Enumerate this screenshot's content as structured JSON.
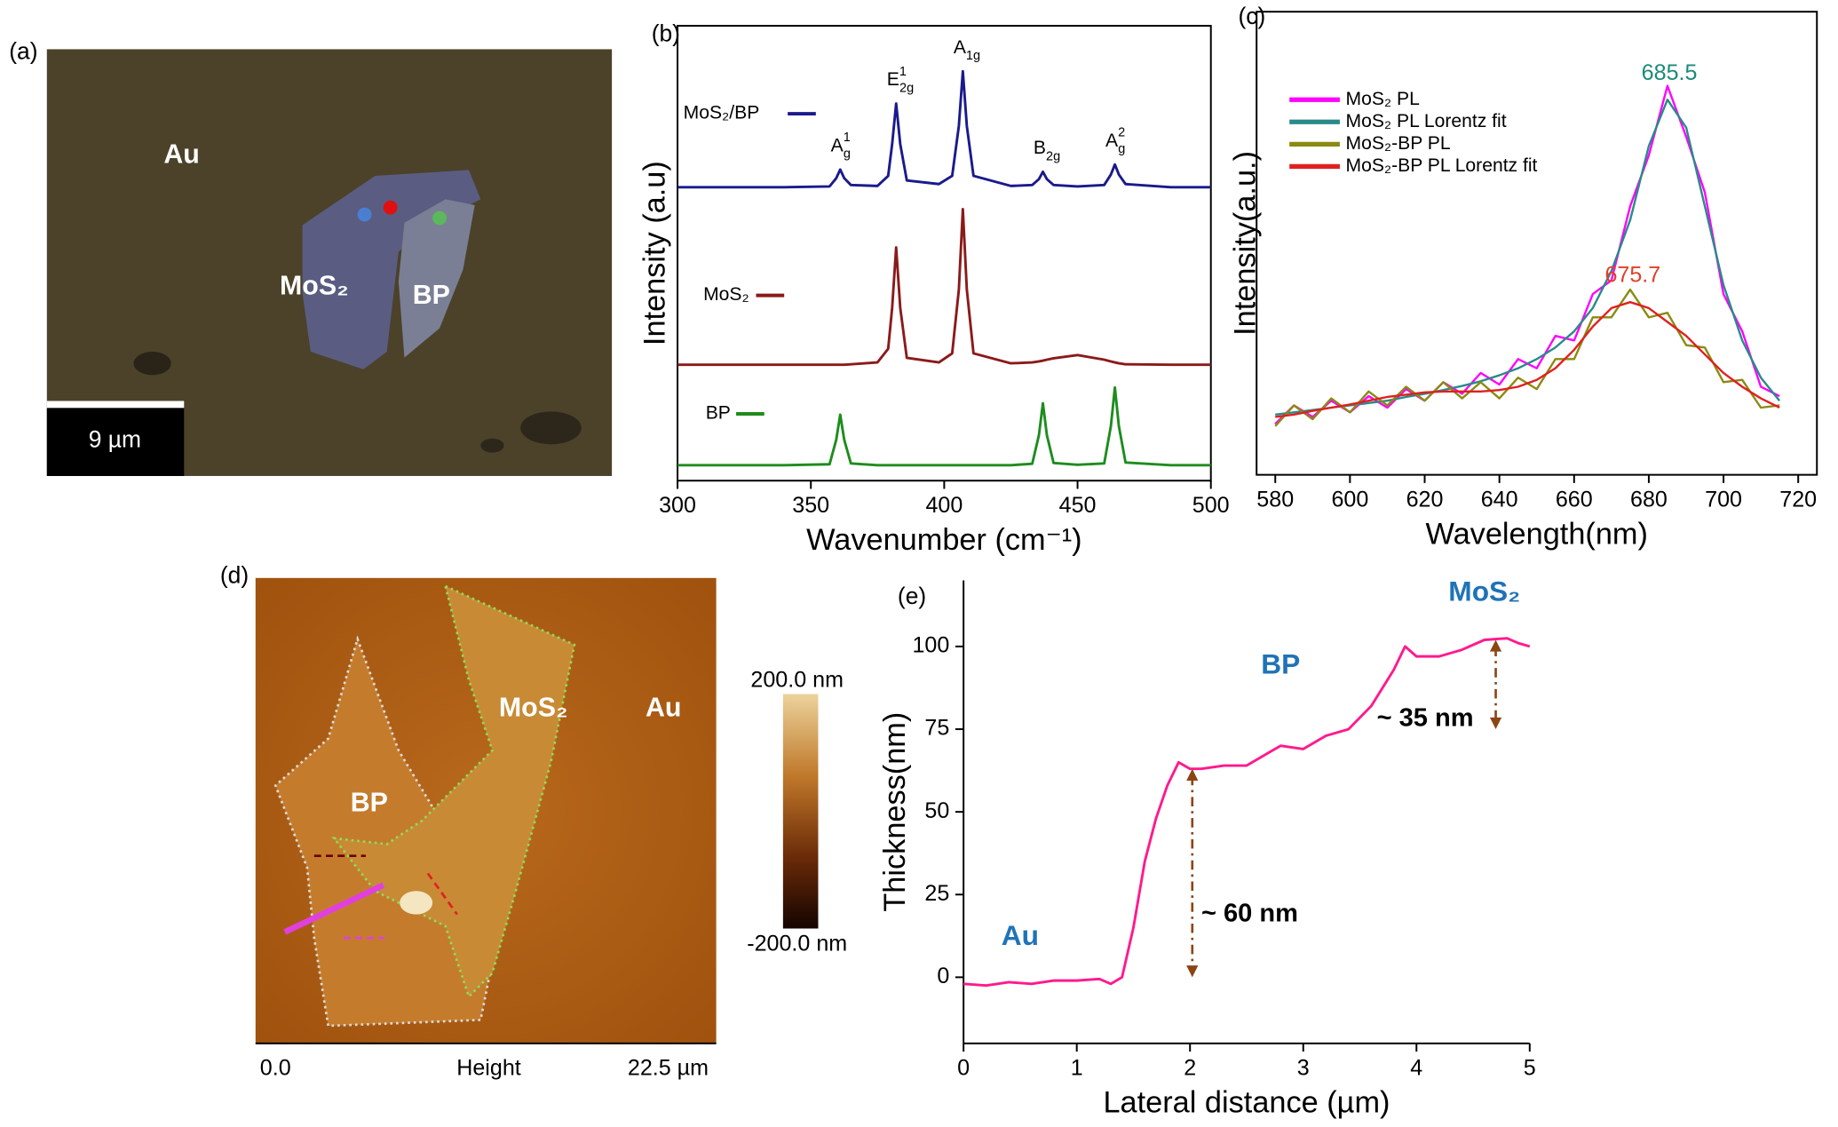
{
  "panels": {
    "a": {
      "panel_label": "(a)",
      "labels": [
        "Au",
        "MoS₂",
        "BP"
      ],
      "scale_bar": "9 µm"
    },
    "d": {
      "panel_label": "(d)",
      "labels": [
        "MoS₂",
        "Au",
        "BP"
      ],
      "colorbar": {
        "max": "200.0 nm",
        "min": "-200.0 nm"
      },
      "axis": {
        "start": "0.0",
        "name": "Height",
        "end": "22.5 µm"
      }
    }
  },
  "chart_data": [
    {
      "type": "line",
      "panel_label": "(b)",
      "x_label": "Wavenumber (cm⁻¹)",
      "y_label": "Intensity (a.u)",
      "xlim": [
        300,
        500
      ],
      "xticks": [
        300,
        350,
        400,
        450,
        500
      ],
      "ylim": [
        0,
        100
      ],
      "frame": true,
      "x": [
        300,
        340,
        357,
        359.5,
        361,
        362.5,
        365,
        375,
        379,
        380.5,
        382,
        383.5,
        386,
        398,
        403,
        405.5,
        407,
        408.5,
        411,
        425,
        433,
        435.5,
        437,
        438.5,
        441,
        450,
        460,
        462.5,
        464,
        465.5,
        468,
        485,
        500
      ],
      "series": [
        {
          "name": "MoS₂/BP",
          "color": "#1a1a8c",
          "values": [
            64.5,
            64.5,
            64.7,
            66.5,
            68.4,
            66.5,
            65,
            64.8,
            67,
            74,
            82.9,
            74,
            66,
            65.2,
            67,
            78,
            90,
            78,
            67,
            64.8,
            65,
            66.3,
            67.9,
            66.3,
            65,
            64.7,
            65,
            67.3,
            69.5,
            67.3,
            65.2,
            64.5,
            64.5
          ]
        },
        {
          "name": "MoS₂",
          "color": "#8b1a1a",
          "values": [
            25.5,
            25.5,
            25.5,
            25.5,
            25.5,
            25.5,
            25.6,
            26,
            29,
            38,
            51.3,
            38,
            27,
            26,
            28,
            42,
            59.7,
            42,
            28,
            25.8,
            26,
            26.2,
            26.4,
            26.6,
            26.9,
            27.6,
            26.6,
            26.2,
            26,
            25.8,
            25.6,
            25.5,
            25.5
          ]
        },
        {
          "name": "BP",
          "color": "#1e8c1e",
          "values": [
            3.4,
            3.4,
            3.6,
            9,
            14.5,
            9,
            3.8,
            3.4,
            3.4,
            3.4,
            3.4,
            3.4,
            3.4,
            3.4,
            3.4,
            3.4,
            3.4,
            3.4,
            3.4,
            3.4,
            3.7,
            10,
            17,
            10,
            3.9,
            3.5,
            3.8,
            12,
            20.5,
            12,
            4,
            3.4,
            3.4
          ]
        }
      ],
      "peak_labels": [
        {
          "base": "A",
          "sup": "1",
          "sub": "g"
        },
        {
          "base": "E",
          "sup": "1",
          "sub": "2g"
        },
        {
          "base": "A",
          "sub": "1g"
        },
        {
          "base": "B",
          "sub": "2g"
        },
        {
          "base": "A",
          "sup": "2",
          "sub": "g"
        }
      ]
    },
    {
      "type": "line",
      "panel_label": "(c)",
      "x_label": "Wavelength(nm)",
      "y_label": "Intensity(a.u.)",
      "xlim": [
        575,
        725
      ],
      "xticks": [
        580,
        600,
        620,
        640,
        660,
        680,
        700,
        720
      ],
      "ylim": [
        0,
        100
      ],
      "frame": true,
      "x": [
        580,
        585,
        590,
        595,
        600,
        605,
        610,
        615,
        620,
        625,
        630,
        635,
        640,
        645,
        650,
        655,
        660,
        665,
        670,
        675,
        680,
        685,
        690,
        695,
        700,
        705,
        710,
        715
      ],
      "series": [
        {
          "name": "MoS₂ PL",
          "color": "#ff00ff",
          "values": [
            11,
            15,
            12.5,
            16,
            13.5,
            17,
            14.5,
            18.5,
            16,
            20,
            17.5,
            22,
            19.5,
            25,
            23,
            30,
            29,
            39,
            42,
            58,
            69,
            84,
            73,
            61,
            39,
            31,
            19,
            17
          ]
        },
        {
          "name": "MoS₂ PL Lorentz fit",
          "color": "#2a8a8a",
          "values": [
            13,
            13.5,
            14,
            14.5,
            15,
            15.5,
            16,
            16.8,
            17.5,
            18.3,
            19.2,
            20.2,
            21.5,
            23,
            25,
            27.5,
            31,
            36,
            44,
            55,
            71,
            81,
            75,
            58,
            41,
            29,
            21,
            16
          ]
        },
        {
          "name": "MoS₂-BP PL",
          "color": "#8a8a10",
          "values": [
            10.5,
            15,
            12,
            16.5,
            13.5,
            18,
            15,
            19,
            16,
            20,
            16.5,
            20,
            16.5,
            21,
            18.5,
            25,
            25,
            34,
            34,
            40,
            34,
            35,
            28,
            27.5,
            20,
            20.5,
            14.5,
            15
          ]
        },
        {
          "name": "MoS₂-BP PL Lorentz fit",
          "color": "#e02020",
          "values": [
            12.5,
            13,
            13.8,
            14.5,
            15.2,
            16,
            16.8,
            17.3,
            17.8,
            18,
            18,
            18,
            18.3,
            19,
            20.5,
            23,
            27,
            32,
            36,
            37.3,
            36,
            33,
            30,
            26,
            22,
            19,
            16.5,
            14.5
          ]
        }
      ],
      "peak_labels": [
        {
          "value": 685.5,
          "color": "#1a8a7a"
        },
        {
          "value": 675.7,
          "color": "#e0402a"
        }
      ]
    },
    {
      "type": "line",
      "panel_label": "(e)",
      "x_label": "Lateral distance (µm)",
      "y_label": "Thickness(nm)",
      "xlim": [
        0,
        5
      ],
      "xticks": [
        0,
        1,
        2,
        3,
        4,
        5
      ],
      "ylim": [
        -20,
        120
      ],
      "yticks": [
        0,
        25,
        50,
        75,
        100
      ],
      "frame": false,
      "x": [
        0,
        0.2,
        0.4,
        0.6,
        0.8,
        1.0,
        1.2,
        1.3,
        1.4,
        1.5,
        1.6,
        1.7,
        1.8,
        1.9,
        2.0,
        2.1,
        2.3,
        2.5,
        2.7,
        2.8,
        3.0,
        3.2,
        3.4,
        3.6,
        3.8,
        3.9,
        4.0,
        4.2,
        4.4,
        4.6,
        4.8,
        4.9,
        5.0
      ],
      "series": [
        {
          "color": "#ff1a8c",
          "values": [
            -2,
            -2.5,
            -1.5,
            -2,
            -1,
            -1,
            -0.5,
            -2,
            0,
            15,
            35,
            48,
            58,
            65,
            63,
            63,
            64,
            64,
            68,
            70,
            69,
            73,
            75,
            82,
            93,
            100,
            97,
            97,
            99,
            102,
            102.5,
            101,
            100
          ]
        }
      ],
      "region_labels": [
        "Au",
        "BP",
        "MoS₂"
      ],
      "step_labels": [
        "~ 60 nm",
        "~ 35 nm"
      ]
    }
  ]
}
